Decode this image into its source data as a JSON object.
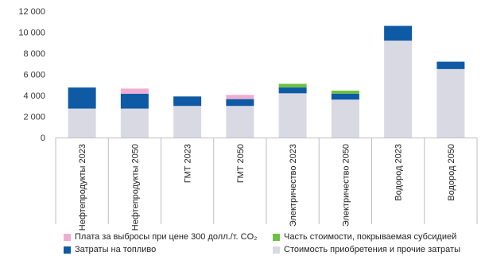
{
  "chart_data": {
    "type": "bar",
    "stacked": true,
    "ylim": [
      0,
      12000
    ],
    "yticks": [
      0,
      2000,
      4000,
      6000,
      8000,
      10000,
      12000
    ],
    "ytick_labels": [
      "0",
      "2 000",
      "4 000",
      "6 000",
      "8 000",
      "10 000",
      "12 000"
    ],
    "grid": false,
    "legend_position": "bottom",
    "categories": [
      "Нефтепродукты 2023",
      "Нефтепродукты 2050",
      "ГМТ 2023",
      "ГМТ 2050",
      "Электричество 2023",
      "Электричество 2050",
      "Водород  2023",
      "Водород 2050"
    ],
    "series": [
      {
        "name": "Стоимость приобретения и прочие затраты",
        "color": "#d9d9e3",
        "values": [
          2750,
          2750,
          3000,
          3000,
          4200,
          3600,
          9200,
          6500
        ]
      },
      {
        "name": "Затраты на топливо",
        "color": "#0e5aa5",
        "values": [
          2000,
          1400,
          900,
          650,
          550,
          550,
          1400,
          700
        ]
      },
      {
        "name": "Часть стоимости, покрываемая субсидией",
        "color": "#6ec044",
        "values": [
          0,
          0,
          0,
          0,
          350,
          300,
          0,
          0
        ]
      },
      {
        "name": "Плата за выбросы при цене 300 долл./т. CO₂",
        "color": "#eeaed2",
        "values": [
          0,
          500,
          0,
          400,
          0,
          0,
          0,
          0
        ]
      }
    ]
  },
  "legend": [
    {
      "label": "Плата за выбросы при цене 300 долл./т. CO₂",
      "color": "#eeaed2"
    },
    {
      "label": "Часть стоимости, покрываемая субсидией",
      "color": "#6ec044"
    },
    {
      "label": "Затраты на топливо",
      "color": "#0e5aa5"
    },
    {
      "label": "Стоимость приобретения и прочие затраты",
      "color": "#d9d9e3"
    }
  ]
}
